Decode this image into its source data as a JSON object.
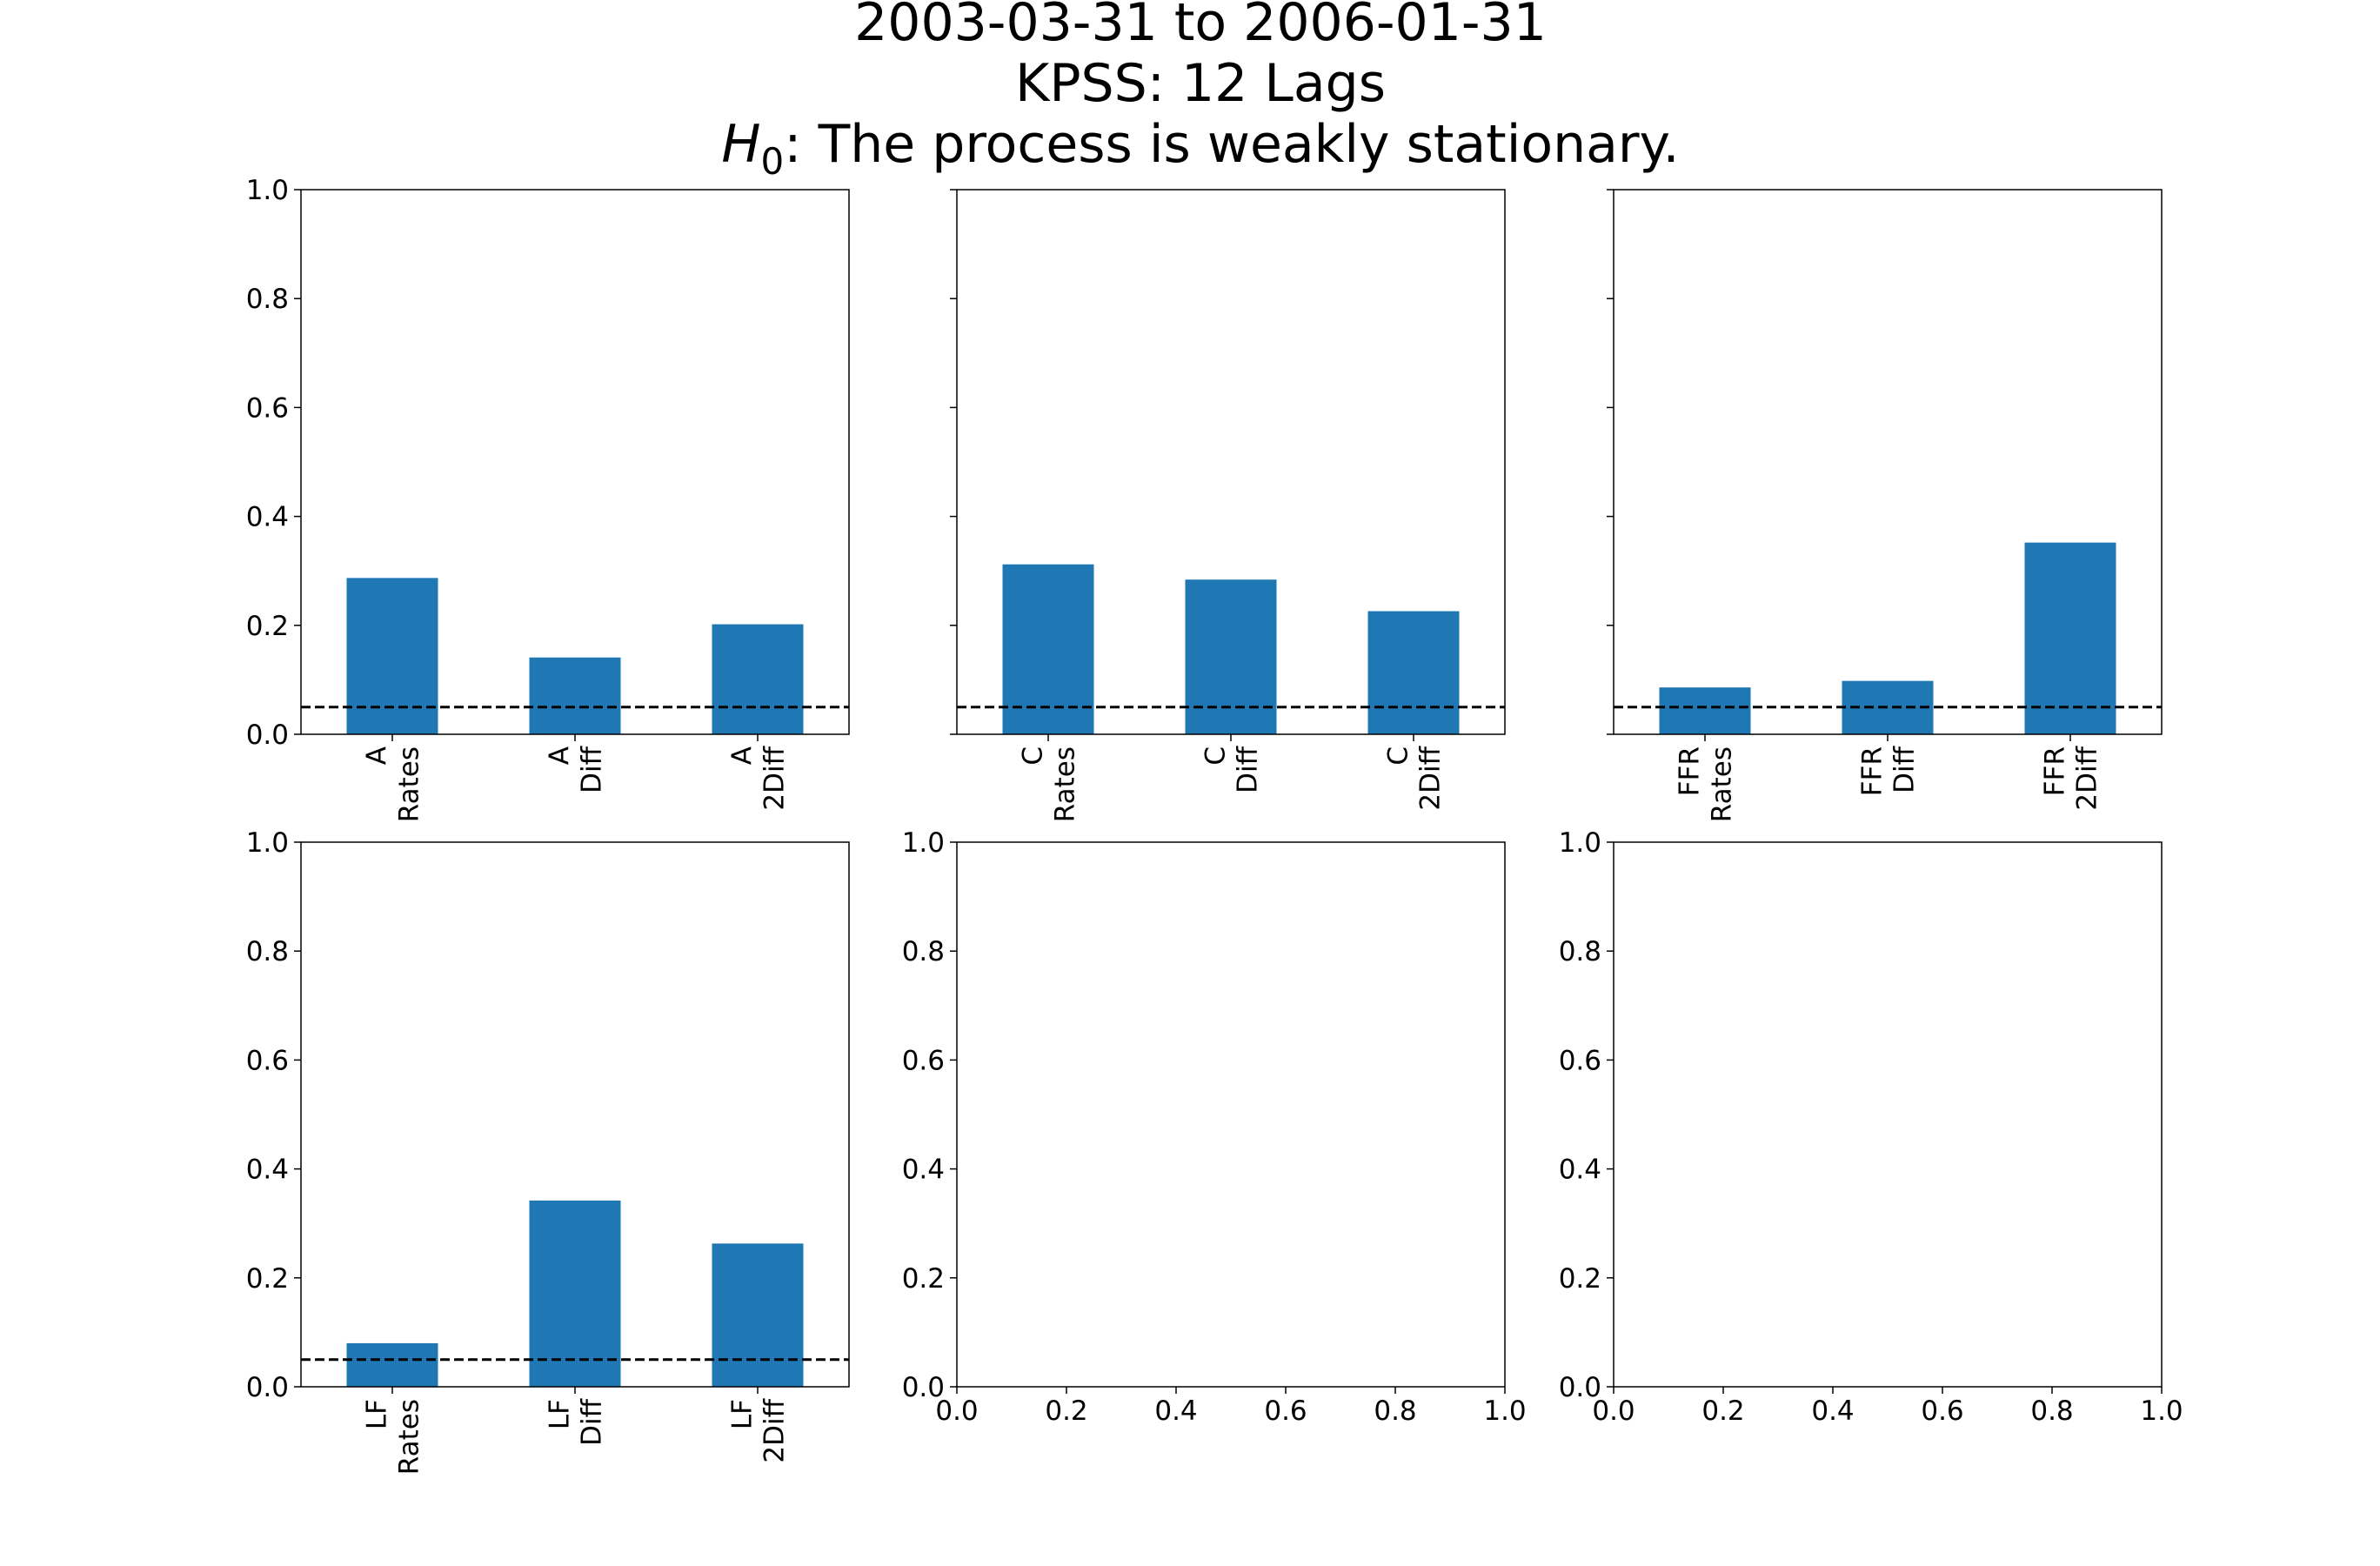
{
  "chart_data": {
    "title_lines": [
      {
        "text": "2003-03-31 to 2006-01-31"
      },
      {
        "text": "KPSS: 12 Lags"
      },
      {
        "math": "H",
        "sub": "0",
        "rest": ":  The process is weakly stationary."
      }
    ],
    "colors": {
      "bar": "#1f77b4",
      "threshold": "#000000",
      "axes": "#000000"
    },
    "threshold": 0.05,
    "panels": [
      {
        "type": "bar",
        "categories": [
          "A\nRates",
          "A\nDiff",
          "A\n2Diff"
        ],
        "values": [
          0.287,
          0.141,
          0.202
        ],
        "ylim": [
          0,
          1.0
        ],
        "yticks": [
          "0.0",
          "0.2",
          "0.4",
          "0.6",
          "0.8",
          "1.0"
        ],
        "show_ytick_labels": true
      },
      {
        "type": "bar",
        "categories": [
          "C\nRates",
          "C\nDiff",
          "C\n2Diff"
        ],
        "values": [
          0.312,
          0.284,
          0.226
        ],
        "ylim": [
          0,
          1.0
        ],
        "yticks": [
          "0.0",
          "0.2",
          "0.4",
          "0.6",
          "0.8",
          "1.0"
        ],
        "show_ytick_labels": false
      },
      {
        "type": "bar",
        "categories": [
          "FFR\nRates",
          "FFR\nDiff",
          "FFR\n2Diff"
        ],
        "values": [
          0.086,
          0.098,
          0.352
        ],
        "ylim": [
          0,
          1.0
        ],
        "yticks": [
          "0.0",
          "0.2",
          "0.4",
          "0.6",
          "0.8",
          "1.0"
        ],
        "show_ytick_labels": false
      },
      {
        "type": "bar",
        "categories": [
          "LF\nRates",
          "LF\nDiff",
          "LF\n2Diff"
        ],
        "values": [
          0.08,
          0.342,
          0.263
        ],
        "ylim": [
          0,
          1.0
        ],
        "yticks": [
          "0.0",
          "0.2",
          "0.4",
          "0.6",
          "0.8",
          "1.0"
        ],
        "show_ytick_labels": true
      },
      {
        "type": "empty",
        "xlim": [
          0,
          1.0
        ],
        "ylim": [
          0,
          1.0
        ],
        "xticks": [
          "0.0",
          "0.2",
          "0.4",
          "0.6",
          "0.8",
          "1.0"
        ],
        "yticks": [
          "0.0",
          "0.2",
          "0.4",
          "0.6",
          "0.8",
          "1.0"
        ]
      },
      {
        "type": "empty",
        "xlim": [
          0,
          1.0
        ],
        "ylim": [
          0,
          1.0
        ],
        "xticks": [
          "0.0",
          "0.2",
          "0.4",
          "0.6",
          "0.8",
          "1.0"
        ],
        "yticks": [
          "0.0",
          "0.2",
          "0.4",
          "0.6",
          "0.8",
          "1.0"
        ]
      }
    ]
  }
}
